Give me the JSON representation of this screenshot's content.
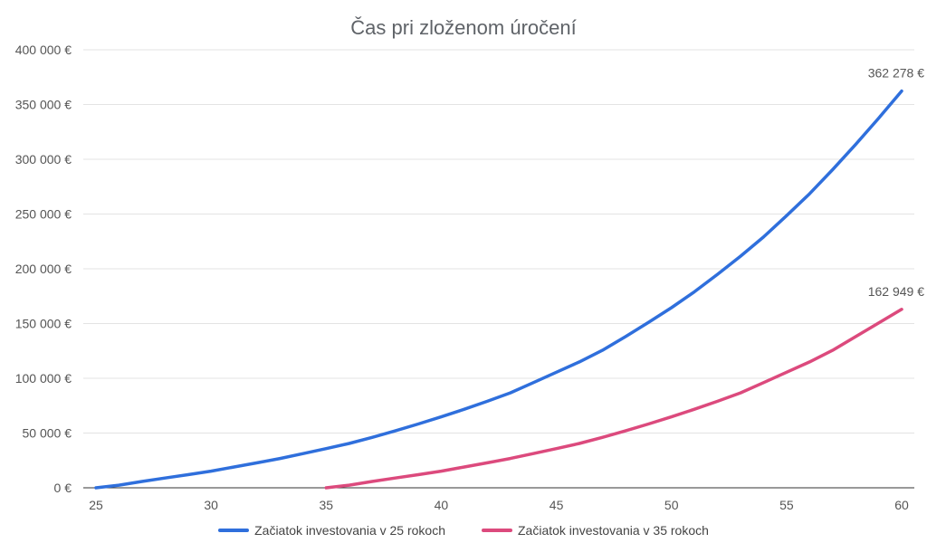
{
  "chart_data": {
    "type": "line",
    "title": "Čas pri zloženom úročení",
    "xlabel": "",
    "ylabel": "",
    "xlim": [
      25,
      60
    ],
    "ylim": [
      0,
      400000
    ],
    "x_ticks": [
      "25",
      "30",
      "35",
      "40",
      "45",
      "50",
      "55",
      "60"
    ],
    "x_tick_values": [
      25,
      30,
      35,
      40,
      45,
      50,
      55,
      60
    ],
    "y_ticks": [
      "0 €",
      "50 000 €",
      "100 000 €",
      "150 000 €",
      "200 000 €",
      "250 000 €",
      "300 000 €",
      "350 000 €",
      "400 000 €"
    ],
    "y_tick_values": [
      0,
      50000,
      100000,
      150000,
      200000,
      250000,
      300000,
      350000,
      400000
    ],
    "grid": true,
    "legend_position": "bottom",
    "series": [
      {
        "name": "Začiatok investovania v 25 rokoch",
        "color": "#2f6fdc",
        "x": [
          25,
          26,
          27,
          28,
          29,
          30,
          31,
          32,
          33,
          34,
          35,
          36,
          37,
          38,
          39,
          40,
          41,
          42,
          43,
          44,
          45,
          46,
          47,
          48,
          49,
          50,
          51,
          52,
          53,
          54,
          55,
          56,
          57,
          58,
          59,
          60
        ],
        "y": [
          0,
          2400,
          5800,
          8900,
          12000,
          15200,
          19000,
          22800,
          26800,
          31200,
          35800,
          40500,
          46000,
          52000,
          58300,
          64800,
          71700,
          79000,
          86700,
          96000,
          105500,
          115000,
          125500,
          138000,
          151000,
          164500,
          179000,
          195000,
          211500,
          229000,
          248500,
          268500,
          290500,
          313500,
          337500,
          362278
        ],
        "end_label": "362 278 €"
      },
      {
        "name": "Začiatok investovania v 35 rokoch",
        "color": "#dc4a7d",
        "x": [
          35,
          36,
          37,
          38,
          39,
          40,
          41,
          42,
          43,
          44,
          45,
          46,
          47,
          48,
          49,
          50,
          51,
          52,
          53,
          54,
          55,
          56,
          57,
          58,
          59,
          60
        ],
        "y": [
          0,
          2400,
          5800,
          8900,
          12000,
          15200,
          19000,
          22800,
          26800,
          31200,
          35800,
          40500,
          46000,
          52000,
          58300,
          64800,
          71700,
          79000,
          86700,
          96000,
          105500,
          115000,
          125500,
          138000,
          150500,
          162949
        ],
        "end_label": "162 949 €"
      }
    ]
  }
}
